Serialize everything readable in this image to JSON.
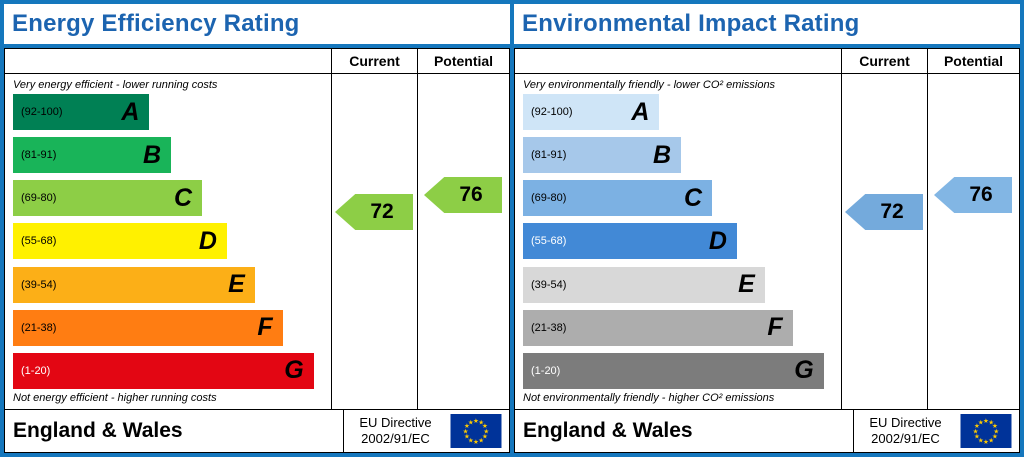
{
  "theme": {
    "frame-blue": "#1577bd",
    "title-blue": "#1c64b0",
    "eu-flag-blue": "#003399",
    "eu-star-yellow": "#ffcc00"
  },
  "chart_data": [
    {
      "type": "bar",
      "subtype": "epc-rating-scale",
      "title": "Energy Efficiency Rating",
      "columns": [
        "Current",
        "Potential"
      ],
      "top_caption": "Very energy efficient - lower running costs",
      "bottom_caption": "Not energy efficient - higher running costs",
      "current": 72,
      "potential": 76,
      "current_band": "C",
      "potential_band": "C",
      "arrow_colors": {
        "current": "#8dce46",
        "potential": "#8dce46"
      },
      "bands": [
        {
          "label": "A",
          "range": [
            92,
            100
          ],
          "range_text": "(92-100)",
          "color": "#008054",
          "width_pct": 44
        },
        {
          "label": "B",
          "range": [
            81,
            91
          ],
          "range_text": "(81-91)",
          "color": "#19b459",
          "width_pct": 51
        },
        {
          "label": "C",
          "range": [
            69,
            80
          ],
          "range_text": "(69-80)",
          "color": "#8dce46",
          "width_pct": 61
        },
        {
          "label": "D",
          "range": [
            55,
            68
          ],
          "range_text": "(55-68)",
          "color": "#fff100",
          "width_pct": 69
        },
        {
          "label": "E",
          "range": [
            39,
            54
          ],
          "range_text": "(39-54)",
          "color": "#fcaf17",
          "width_pct": 78
        },
        {
          "label": "F",
          "range": [
            21,
            38
          ],
          "range_text": "(21-38)",
          "color": "#ff7d12",
          "width_pct": 87
        },
        {
          "label": "G",
          "range": [
            1,
            20
          ],
          "range_text": "(1-20)",
          "color": "#e30613",
          "width_pct": 97,
          "range_text_color": "#ffffff"
        }
      ],
      "footer": {
        "region": "England & Wales",
        "directive_line1": "EU Directive",
        "directive_line2": "2002/91/EC"
      }
    },
    {
      "type": "bar",
      "subtype": "epc-rating-scale",
      "title": "Environmental Impact Rating",
      "columns": [
        "Current",
        "Potential"
      ],
      "top_caption": "Very environmentally friendly - lower CO² emissions",
      "bottom_caption": "Not environmentally friendly - higher CO² emissions",
      "current": 72,
      "potential": 76,
      "current_band": "C",
      "potential_band": "C",
      "arrow_colors": {
        "current": "#74aadc",
        "potential": "#82b6e4"
      },
      "bands": [
        {
          "label": "A",
          "range": [
            92,
            100
          ],
          "range_text": "(92-100)",
          "color": "#cfe5f7",
          "width_pct": 44
        },
        {
          "label": "B",
          "range": [
            81,
            91
          ],
          "range_text": "(81-91)",
          "color": "#a6c8ea",
          "width_pct": 51
        },
        {
          "label": "C",
          "range": [
            69,
            80
          ],
          "range_text": "(69-80)",
          "color": "#7cb1e3",
          "width_pct": 61
        },
        {
          "label": "D",
          "range": [
            55,
            68
          ],
          "range_text": "(55-68)",
          "color": "#4289d6",
          "width_pct": 69,
          "range_text_color": "#ffffff"
        },
        {
          "label": "E",
          "range": [
            39,
            54
          ],
          "range_text": "(39-54)",
          "color": "#d8d8d8",
          "width_pct": 78
        },
        {
          "label": "F",
          "range": [
            21,
            38
          ],
          "range_text": "(21-38)",
          "color": "#adadad",
          "width_pct": 87
        },
        {
          "label": "G",
          "range": [
            1,
            20
          ],
          "range_text": "(1-20)",
          "color": "#7c7c7c",
          "width_pct": 97,
          "range_text_color": "#ffffff"
        }
      ],
      "footer": {
        "region": "England & Wales",
        "directive_line1": "EU Directive",
        "directive_line2": "2002/91/EC"
      }
    }
  ]
}
